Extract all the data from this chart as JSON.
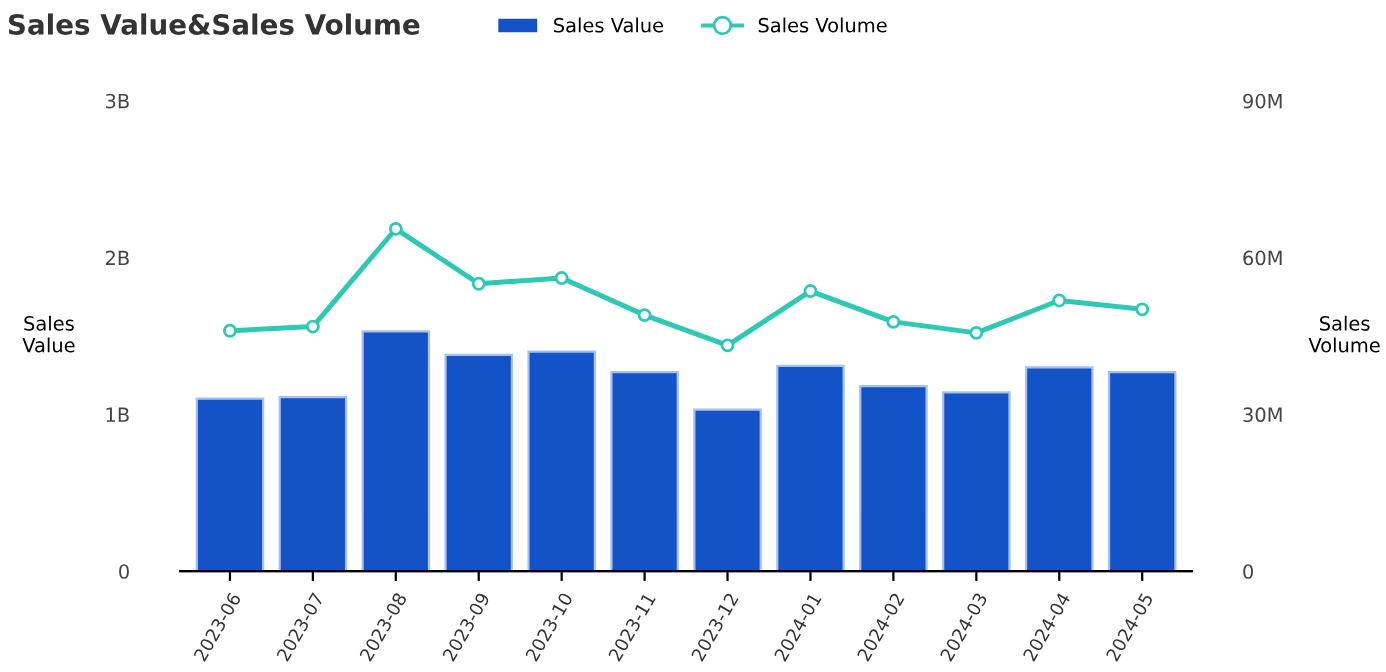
{
  "chart_data": {
    "type": "bar",
    "title": "Sales Value&Sales Volume",
    "categories": [
      "2023-06",
      "2023-07",
      "2023-08",
      "2023-09",
      "2023-10",
      "2023-11",
      "2023-12",
      "2024-01",
      "2024-02",
      "2024-03",
      "2024-04",
      "2024-05"
    ],
    "series": [
      {
        "name": "Sales Value",
        "color": "#1452c8",
        "values": [
          1.1,
          1.11,
          1.53,
          1.38,
          1.4,
          1.27,
          1.03,
          1.31,
          1.18,
          1.14,
          1.3,
          1.27
        ]
      },
      {
        "name": "Sales Volume",
        "type": "line",
        "axis": "y2",
        "color": "#2ec9b5",
        "marker": "circle",
        "values": [
          46.0,
          46.8,
          65.5,
          55.0,
          56.1,
          49.0,
          43.2,
          53.6,
          47.7,
          45.6,
          51.8,
          50.1
        ]
      }
    ],
    "ylabel": "Sales\nValue",
    "y2label": "Sales\nVolume",
    "ylim": [
      0,
      3
    ],
    "yticks": [
      0,
      {
        "value": 1,
        "label": "1B"
      },
      {
        "value": 2,
        "label": "2B"
      },
      {
        "value": 3,
        "label": "3B"
      }
    ],
    "y2lim": [
      0,
      90
    ],
    "y2ticks": [
      0,
      {
        "value": 30,
        "label": "30M"
      },
      {
        "value": 60,
        "label": "60M"
      },
      {
        "value": 90,
        "label": "90M"
      }
    ],
    "legend": "top",
    "grid": false
  }
}
